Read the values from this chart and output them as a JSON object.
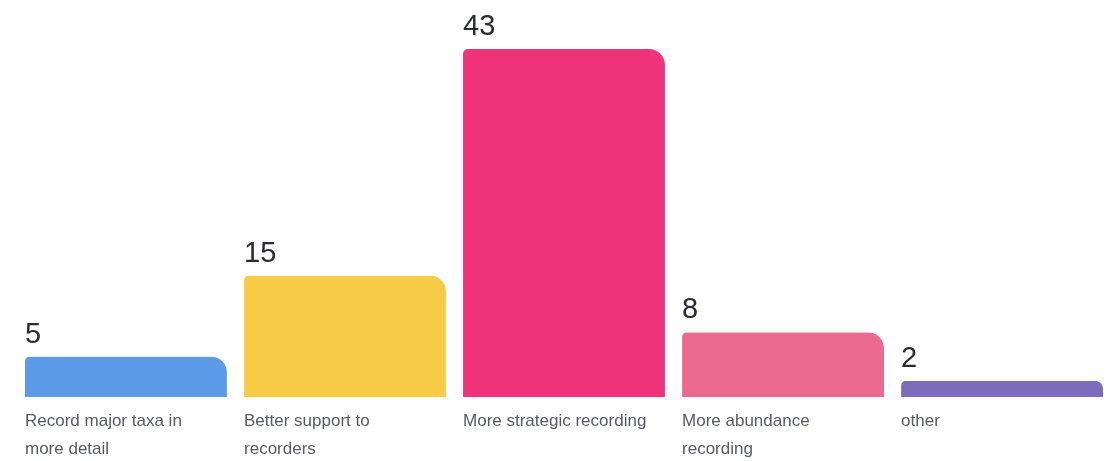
{
  "chart_data": {
    "type": "bar",
    "categories": [
      "Record major taxa in more detail",
      "Better support to recorders",
      "More strategic recording",
      "More abundance recording",
      "other"
    ],
    "values": [
      5,
      15,
      43,
      8,
      2
    ],
    "colors": [
      "#5b9be8",
      "#f7cb45",
      "#ee3379",
      "#ec6a8f",
      "#7b6dbb"
    ],
    "data_labels": true
  }
}
